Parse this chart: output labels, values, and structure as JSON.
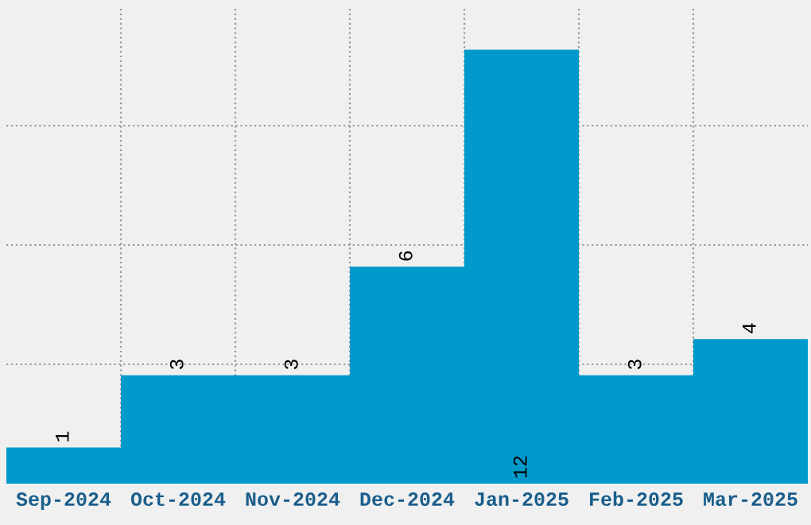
{
  "chart_data": {
    "type": "bar",
    "categories": [
      "Sep-2024",
      "Oct-2024",
      "Nov-2024",
      "Dec-2024",
      "Jan-2025",
      "Feb-2025",
      "Mar-2025"
    ],
    "values": [
      1,
      3,
      3,
      6,
      12,
      3,
      4
    ],
    "color": "#0099cc",
    "ylim": [
      0,
      13.2
    ],
    "yticks": [
      {
        "value": 3.3,
        "label": null
      },
      {
        "value": 6.6,
        "label": null
      },
      {
        "value": 9.9,
        "label": null
      }
    ],
    "tick_labels": "x",
    "grid": true,
    "data_labels": true
  }
}
